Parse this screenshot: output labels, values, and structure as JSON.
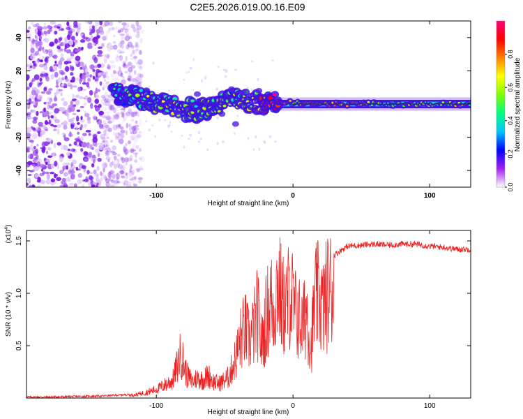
{
  "title": "C2E5.2026.019.00.16.E09",
  "chart_data": [
    {
      "type": "heatmap",
      "title": "C2E5.2026.019.00.16.E09",
      "xlabel": "Height of straight line (km)",
      "ylabel": "Frequency (Hz)",
      "xlim": [
        -195,
        130
      ],
      "ylim": [
        -50,
        50
      ],
      "xticks": [
        -100,
        0,
        100
      ],
      "xtick_labels": [
        "-100",
        "0",
        "100"
      ],
      "yticks": [
        -40,
        -20,
        0,
        20,
        40
      ],
      "ytick_labels": [
        "-40",
        "-20",
        "0",
        "20",
        "40"
      ],
      "colorbar": {
        "label": "Normalized spectral amplitude",
        "range": [
          0.0,
          1.0
        ],
        "ticks": [
          0.0,
          0.2,
          0.4,
          0.6,
          0.8
        ],
        "tick_labels": [
          "0.0",
          "0.2",
          "0.4",
          "0.6",
          "0.8"
        ],
        "colors": [
          "#ffffff",
          "#a020f0",
          "#0000ff",
          "#00c8ff",
          "#00ff80",
          "#80ff00",
          "#ffff00",
          "#ff8000",
          "#ff0000",
          "#ff0080"
        ]
      },
      "ridge": {
        "x": [
          -130,
          -120,
          -110,
          -100,
          -90,
          -80,
          -70,
          -60,
          -50,
          -40,
          -30,
          -20,
          -10,
          0,
          10,
          20,
          40,
          60,
          80,
          100,
          130
        ],
        "freq": [
          6,
          5,
          3,
          1,
          -1,
          -3,
          -4,
          -2,
          2,
          3,
          1,
          1,
          1,
          1,
          0,
          0,
          0,
          0,
          0,
          0,
          0
        ],
        "amplitude": [
          0.3,
          0.45,
          0.5,
          0.5,
          0.55,
          0.5,
          0.5,
          0.45,
          0.5,
          0.5,
          0.55,
          0.8,
          0.9,
          0.6,
          0.8,
          0.85,
          0.8,
          0.55,
          0.55,
          0.55,
          0.5
        ]
      },
      "noise_region_x": [
        -195,
        -120
      ]
    },
    {
      "type": "line",
      "xlabel": "Height of straight line (km)",
      "ylabel": "SNR (10 * v/v)",
      "scale_label": "(x10",
      "scale_exponent": "4",
      "scale_suffix": ")",
      "xlim": [
        -195,
        130
      ],
      "ylim": [
        0,
        1.6
      ],
      "xticks": [
        -100,
        0,
        100
      ],
      "xtick_labels": [
        "-100",
        "0",
        "100"
      ],
      "yticks": [
        0.5,
        1.0,
        1.5
      ],
      "ytick_labels": [
        "0.5",
        "1.0",
        "1.5"
      ],
      "line_color": "#ee2222",
      "series": [
        {
          "name": "SNR",
          "x": [
            -195,
            -180,
            -160,
            -140,
            -125,
            -115,
            -105,
            -98,
            -92,
            -88,
            -85,
            -82,
            -78,
            -74,
            -70,
            -66,
            -62,
            -58,
            -54,
            -50,
            -47,
            -44,
            -41,
            -38,
            -35,
            -32,
            -29,
            -26,
            -23,
            -20,
            -17,
            -14,
            -11,
            -8,
            -5,
            -2,
            1,
            4,
            7,
            10,
            13,
            16,
            19,
            22,
            25,
            28,
            32,
            36,
            40,
            50,
            60,
            70,
            80,
            90,
            100,
            110,
            120,
            130
          ],
          "y": [
            0.01,
            0.01,
            0.015,
            0.02,
            0.03,
            0.04,
            0.08,
            0.12,
            0.18,
            0.22,
            0.38,
            0.55,
            0.3,
            0.2,
            0.25,
            0.22,
            0.28,
            0.2,
            0.18,
            0.22,
            0.26,
            0.4,
            0.55,
            0.75,
            0.85,
            0.7,
            0.82,
            1.05,
            0.65,
            0.95,
            1.2,
            1.1,
            1.45,
            1.15,
            1.1,
            1.35,
            1.05,
            1.0,
            0.85,
            1.15,
            0.6,
            1.2,
            1.25,
            1.1,
            1.3,
            1.35,
            1.38,
            1.42,
            1.45,
            1.46,
            1.47,
            1.46,
            1.47,
            1.47,
            1.45,
            1.44,
            1.42,
            1.42
          ]
        }
      ]
    }
  ]
}
